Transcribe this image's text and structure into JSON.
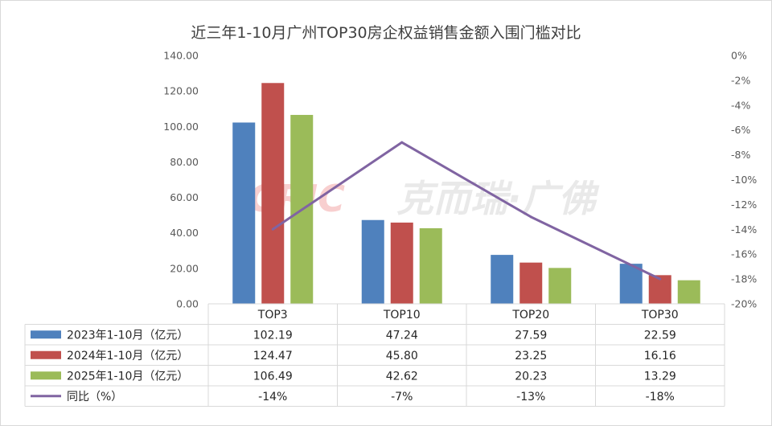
{
  "chart_data": {
    "type": "bar",
    "title": "近三年1-10月广州TOP30房企权益销售金额入围门槛对比",
    "watermark": "CRIC 克而瑞·广佛",
    "categories": [
      "TOP3",
      "TOP10",
      "TOP20",
      "TOP30"
    ],
    "series": [
      {
        "name": "2023年1-10月（亿元）",
        "values": [
          102.19,
          47.24,
          27.59,
          22.59
        ],
        "color": "#4f81bd",
        "labels": [
          "102.19",
          "47.24",
          "27.59",
          "22.59"
        ]
      },
      {
        "name": "2024年1-10月（亿元）",
        "values": [
          124.47,
          45.8,
          23.25,
          16.16
        ],
        "color": "#c0504d",
        "labels": [
          "124.47",
          "45.80",
          "23.25",
          "16.16"
        ]
      },
      {
        "name": "2025年1-10月（亿元）",
        "values": [
          106.49,
          42.62,
          20.23,
          13.29
        ],
        "color": "#9bbb59",
        "labels": [
          "106.49",
          "42.62",
          "20.23",
          "13.29"
        ]
      }
    ],
    "line_series": {
      "name": "同比（%）",
      "values": [
        -14,
        -7,
        -13,
        -18
      ],
      "color": "#8064a2",
      "labels": [
        "-14%",
        "-7%",
        "-13%",
        "-18%"
      ]
    },
    "ylim_left": [
      0,
      140
    ],
    "yticks_left": [
      "0.00",
      "20.00",
      "40.00",
      "60.00",
      "80.00",
      "100.00",
      "120.00",
      "140.00"
    ],
    "ylim_right": [
      -20,
      0
    ],
    "yticks_right": [
      "-20%",
      "-18%",
      "-16%",
      "-14%",
      "-12%",
      "-10%",
      "-8%",
      "-6%",
      "-4%",
      "-2%",
      "0%"
    ],
    "grid": false,
    "legend": "data-table"
  }
}
